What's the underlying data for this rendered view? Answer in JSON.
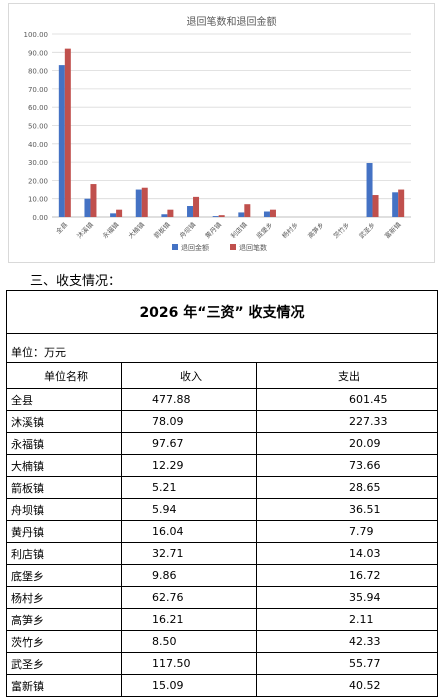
{
  "chart_data": {
    "type": "bar",
    "title": "退回笔数和退回金额",
    "categories": [
      "全县",
      "沐溪镇",
      "永福镇",
      "大楠镇",
      "箭板镇",
      "舟坝镇",
      "黄丹镇",
      "利店镇",
      "底堡乡",
      "杨村乡",
      "高笋乡",
      "茨竹乡",
      "武圣乡",
      "富新镇"
    ],
    "series": [
      {
        "name": "退回金额",
        "color": "#4472c4",
        "values": [
          83,
          10,
          2,
          15,
          1.5,
          6,
          0.5,
          2.5,
          3,
          0,
          0,
          0,
          29.5,
          13.5
        ]
      },
      {
        "name": "退回笔数",
        "color": "#c0504d",
        "values": [
          92,
          18,
          4,
          16,
          4,
          11,
          1,
          7,
          4,
          0,
          0,
          0,
          12,
          15
        ]
      }
    ],
    "ylim": [
      0,
      100
    ],
    "yticks": [
      "0.00",
      "10.00",
      "20.00",
      "30.00",
      "40.00",
      "50.00",
      "60.00",
      "70.00",
      "80.00",
      "90.00",
      "100.00"
    ],
    "grid": true,
    "legend": "bottom"
  },
  "section_heading": "三、收支情况：",
  "table": {
    "title": "2026 年“三资” 收支情况",
    "unit": "单位：万元",
    "headers": {
      "name": "单位名称",
      "income": "收入",
      "expense": "支出"
    },
    "rows": [
      {
        "name": "全县",
        "income": "477.88",
        "expense": "601.45"
      },
      {
        "name": "沐溪镇",
        "income": "78.09",
        "expense": "227.33"
      },
      {
        "name": "永福镇",
        "income": "97.67",
        "expense": "20.09"
      },
      {
        "name": "大楠镇",
        "income": "12.29",
        "expense": "73.66"
      },
      {
        "name": "箭板镇",
        "income": "5.21",
        "expense": "28.65"
      },
      {
        "name": "舟坝镇",
        "income": "5.94",
        "expense": "36.51"
      },
      {
        "name": "黄丹镇",
        "income": "16.04",
        "expense": "7.79"
      },
      {
        "name": "利店镇",
        "income": "32.71",
        "expense": "14.03"
      },
      {
        "name": "底堡乡",
        "income": "9.86",
        "expense": "16.72"
      },
      {
        "name": "杨村乡",
        "income": "62.76",
        "expense": "35.94"
      },
      {
        "name": "高笋乡",
        "income": "16.21",
        "expense": "2.11"
      },
      {
        "name": "茨竹乡",
        "income": "8.50",
        "expense": "42.33"
      },
      {
        "name": "武圣乡",
        "income": "117.50",
        "expense": "55.77"
      },
      {
        "name": "富新镇",
        "income": "15.09",
        "expense": "40.52"
      }
    ]
  }
}
